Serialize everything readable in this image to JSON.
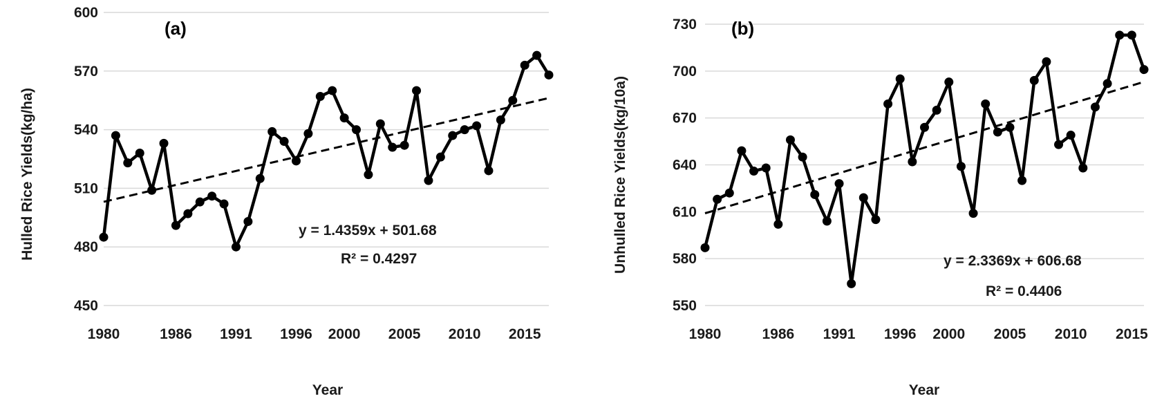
{
  "chart_data": [
    {
      "type": "line",
      "panel_label": "(a)",
      "xlabel": "Year",
      "ylabel": "Hulled Rice Yields(kg/ha)",
      "ylim": [
        450,
        600
      ],
      "yticks": [
        "450",
        "480",
        "510",
        "540",
        "570",
        "600"
      ],
      "xlim": [
        1980,
        2017
      ],
      "xticks": [
        "1980",
        "1986",
        "1991",
        "1996",
        "2000",
        "2005",
        "2010",
        "2015"
      ],
      "grid": true,
      "x": [
        1980,
        1981,
        1982,
        1983,
        1984,
        1985,
        1986,
        1987,
        1988,
        1989,
        1990,
        1991,
        1992,
        1993,
        1994,
        1995,
        1996,
        1997,
        1998,
        1999,
        2000,
        2001,
        2002,
        2003,
        2004,
        2005,
        2006,
        2007,
        2008,
        2009,
        2010,
        2011,
        2012,
        2013,
        2014,
        2015,
        2016,
        2017
      ],
      "series": [
        {
          "values": [
            485,
            537,
            523,
            528,
            509,
            533,
            491,
            497,
            503,
            506,
            502,
            480,
            493,
            515,
            539,
            534,
            524,
            538,
            557,
            560,
            546,
            540,
            517,
            543,
            531,
            532,
            560,
            514,
            526,
            537,
            540,
            542,
            519,
            545,
            555,
            573,
            578,
            568
          ]
        }
      ],
      "trendline": {
        "x": [
          1980,
          2017
        ],
        "values": [
          503.1,
          556.2
        ]
      },
      "equation": "y = 1.4359x + 501.68",
      "r2": "R² = 0.4297"
    },
    {
      "type": "line",
      "panel_label": "(b)",
      "xlabel": "Year",
      "ylabel": "Unhulled Rice Yields(kg/10a)",
      "ylim": [
        550,
        730
      ],
      "yticks": [
        "550",
        "580",
        "610",
        "640",
        "670",
        "700",
        "730"
      ],
      "xlim": [
        1980,
        2016
      ],
      "xticks": [
        "1980",
        "1986",
        "1991",
        "1996",
        "2000",
        "2005",
        "2010",
        "2015"
      ],
      "grid": true,
      "x": [
        1980,
        1981,
        1982,
        1983,
        1984,
        1985,
        1986,
        1987,
        1988,
        1989,
        1990,
        1991,
        1992,
        1993,
        1994,
        1995,
        1996,
        1997,
        1998,
        1999,
        2000,
        2001,
        2002,
        2003,
        2004,
        2005,
        2006,
        2007,
        2008,
        2009,
        2010,
        2011,
        2012,
        2013,
        2014,
        2015,
        2016
      ],
      "series": [
        {
          "values": [
            587,
            618,
            622,
            649,
            636,
            638,
            602,
            656,
            645,
            621,
            604,
            628,
            564,
            619,
            605,
            679,
            695,
            642,
            664,
            675,
            693,
            639,
            609,
            679,
            661,
            664,
            630,
            694,
            706,
            653,
            659,
            638,
            677,
            692,
            723,
            723,
            701
          ]
        }
      ],
      "trendline": {
        "x": [
          1980,
          2016
        ],
        "values": [
          609.0,
          693.1
        ]
      },
      "equation": "y = 2.3369x + 606.68",
      "r2": "R² = 0.4406"
    }
  ]
}
